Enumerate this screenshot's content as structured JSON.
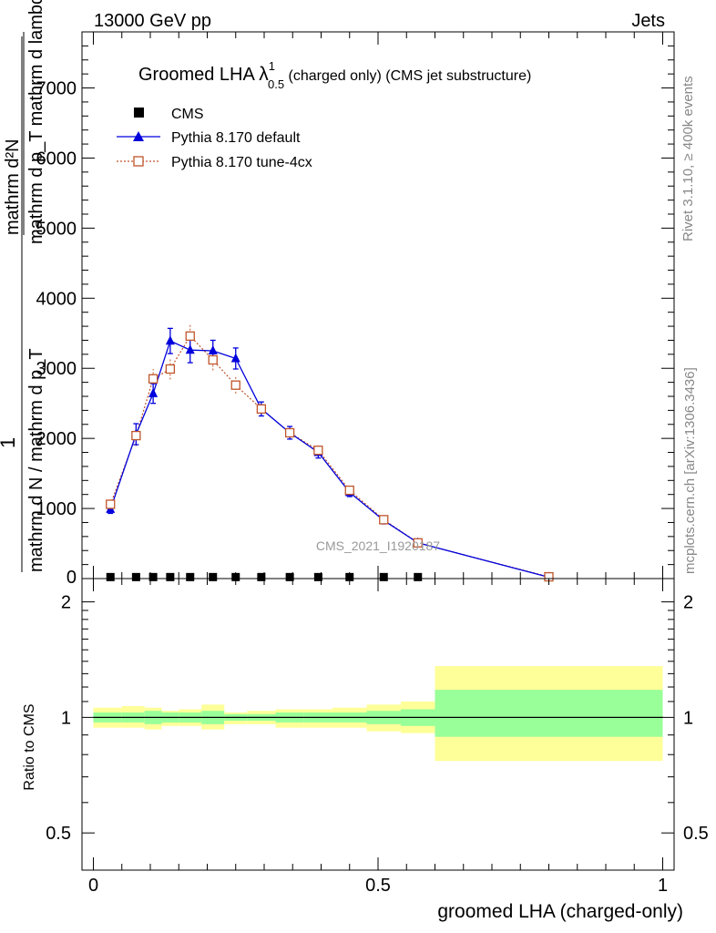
{
  "header": {
    "left": "13000 GeV pp",
    "right": "Jets"
  },
  "side_text": {
    "upper": "Rivet 3.1.10, ≥ 400k events",
    "lower": "mcplots.cern.ch [arXiv:1306.3436]"
  },
  "plot_title": {
    "main": "Groomed LHA ",
    "lambda": "λ",
    "sup": "1",
    "sub": "0.5",
    "rest": "  (charged only) (CMS jet substructure)"
  },
  "watermark": "CMS_2021_I1920187",
  "y_axis_label": {
    "numerator": "mathrm d²N",
    "denominator_line1": "mathrm d p_T mathrm d lambda",
    "one": "1",
    "frac_line": "mathrm d N / mathrm d p_T"
  },
  "ratio_ylabel": "Ratio to CMS",
  "xlabel": "groomed LHA (charged-only)",
  "legend": [
    {
      "name": "CMS",
      "marker": "square",
      "color": "#000000"
    },
    {
      "name": "Pythia 8.170 default",
      "marker": "triangle",
      "color": "#0000dd"
    },
    {
      "name": "Pythia 8.170 tune-4cx",
      "marker": "open-square",
      "color": "#c0552a"
    }
  ],
  "colors": {
    "band_inner": "#99ff99",
    "band_outer": "#ffff99",
    "pythia_default": "#0000dd",
    "pythia_4cx": "#c0552a"
  },
  "chart_data": [
    {
      "type": "line",
      "panel": "main",
      "xlim": [
        -0.02,
        1.02
      ],
      "ylim": [
        0,
        7800
      ],
      "yticks_major": [
        1000,
        2000,
        3000,
        4000,
        5000,
        6000,
        7000
      ],
      "ytick_labels": [
        "1000",
        "2000",
        "3000",
        "4000",
        "5000",
        "6000",
        "7000"
      ],
      "xticks_major": [
        0,
        0.5,
        1
      ],
      "xtick_labels": [
        "0",
        "0.5",
        "1"
      ],
      "series": [
        {
          "name": "CMS",
          "x": [
            0.03,
            0.075,
            0.105,
            0.135,
            0.17,
            0.21,
            0.25,
            0.295,
            0.345,
            0.395,
            0.45,
            0.51,
            0.57
          ],
          "values": [
            2,
            2,
            2,
            2,
            2,
            2,
            2,
            2,
            2,
            2,
            2,
            2,
            2
          ]
        },
        {
          "name": "Pythia 8.170 default",
          "x": [
            0.03,
            0.075,
            0.105,
            0.135,
            0.17,
            0.21,
            0.25,
            0.295,
            0.345,
            0.395,
            0.45,
            0.51,
            0.57,
            0.8
          ],
          "values": [
            990,
            2060,
            2640,
            3390,
            3260,
            3250,
            3140,
            2420,
            2080,
            1800,
            1230,
            830,
            510,
            20
          ],
          "errors": [
            60,
            150,
            140,
            180,
            180,
            150,
            150,
            100,
            90,
            80,
            60,
            50,
            40,
            10
          ]
        },
        {
          "name": "Pythia 8.170 tune-4cx",
          "x": [
            0.03,
            0.075,
            0.105,
            0.135,
            0.17,
            0.21,
            0.25,
            0.295,
            0.345,
            0.395,
            0.45,
            0.51,
            0.57,
            0.8
          ],
          "values": [
            1060,
            2040,
            2850,
            2990,
            3460,
            3120,
            2760,
            2420,
            2080,
            1830,
            1260,
            840,
            510,
            25
          ],
          "errors": [
            60,
            150,
            140,
            150,
            180,
            150,
            120,
            100,
            90,
            80,
            60,
            50,
            40,
            10
          ]
        }
      ]
    },
    {
      "type": "area",
      "panel": "ratio",
      "xlim": [
        -0.02,
        1.02
      ],
      "ylim": [
        0.4,
        2.3
      ],
      "log_y": true,
      "yticks_major": [
        0.5,
        1,
        2
      ],
      "ytick_labels": [
        "0.5",
        "1",
        "2"
      ],
      "xticks_major": [
        0,
        0.5,
        1
      ],
      "xtick_labels": [
        "0",
        "0.5",
        "1"
      ],
      "bin_edges": [
        0,
        0.05,
        0.09,
        0.12,
        0.15,
        0.19,
        0.23,
        0.27,
        0.32,
        0.37,
        0.42,
        0.48,
        0.54,
        0.6,
        1.0
      ],
      "band_inner_low": [
        0.97,
        0.97,
        0.96,
        0.97,
        0.97,
        0.96,
        0.98,
        0.98,
        0.97,
        0.97,
        0.97,
        0.96,
        0.95,
        0.89
      ],
      "band_inner_high": [
        1.03,
        1.03,
        1.04,
        1.03,
        1.03,
        1.04,
        1.02,
        1.02,
        1.03,
        1.03,
        1.03,
        1.04,
        1.05,
        1.18
      ],
      "band_outer_low": [
        0.94,
        0.94,
        0.93,
        0.95,
        0.95,
        0.93,
        0.96,
        0.96,
        0.94,
        0.94,
        0.94,
        0.92,
        0.91,
        0.77
      ],
      "band_outer_high": [
        1.06,
        1.07,
        1.06,
        1.04,
        1.05,
        1.08,
        1.03,
        1.04,
        1.05,
        1.05,
        1.06,
        1.08,
        1.1,
        1.36
      ],
      "reference": 1
    }
  ]
}
